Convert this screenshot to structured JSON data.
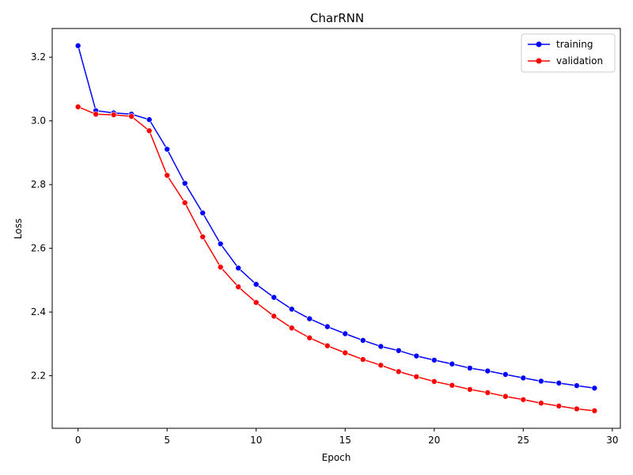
{
  "chart_data": {
    "type": "line",
    "title": "CharRNN",
    "xlabel": "Epoch",
    "ylabel": "Loss",
    "xlim": [
      -1.45,
      30.45
    ],
    "ylim": [
      2.035,
      3.29
    ],
    "xticks": [
      0,
      5,
      10,
      15,
      20,
      25,
      30
    ],
    "yticks": [
      2.2,
      2.4,
      2.6,
      2.8,
      3.0,
      3.2
    ],
    "xtick_labels": [
      "0",
      "5",
      "10",
      "15",
      "20",
      "25",
      "30"
    ],
    "ytick_labels": [
      "2.2",
      "2.4",
      "2.6",
      "2.8",
      "3.0",
      "3.2"
    ],
    "grid": false,
    "legend_position": "top-right",
    "x": [
      0,
      1,
      2,
      3,
      4,
      5,
      6,
      7,
      8,
      9,
      10,
      11,
      12,
      13,
      14,
      15,
      16,
      17,
      18,
      19,
      20,
      21,
      22,
      23,
      24,
      25,
      26,
      27,
      28,
      29
    ],
    "series": [
      {
        "name": "training",
        "color": "#0000ff",
        "values": [
          3.236,
          3.032,
          3.025,
          3.021,
          3.004,
          2.911,
          2.804,
          2.711,
          2.614,
          2.538,
          2.487,
          2.446,
          2.409,
          2.379,
          2.354,
          2.332,
          2.311,
          2.292,
          2.279,
          2.262,
          2.249,
          2.237,
          2.224,
          2.215,
          2.204,
          2.193,
          2.183,
          2.177,
          2.169,
          2.161
        ]
      },
      {
        "name": "validation",
        "color": "#ff0000",
        "values": [
          3.044,
          3.021,
          3.019,
          3.014,
          2.969,
          2.829,
          2.743,
          2.636,
          2.541,
          2.479,
          2.43,
          2.387,
          2.35,
          2.319,
          2.294,
          2.272,
          2.251,
          2.233,
          2.213,
          2.197,
          2.182,
          2.17,
          2.157,
          2.147,
          2.135,
          2.125,
          2.114,
          2.105,
          2.096,
          2.09
        ]
      }
    ]
  }
}
